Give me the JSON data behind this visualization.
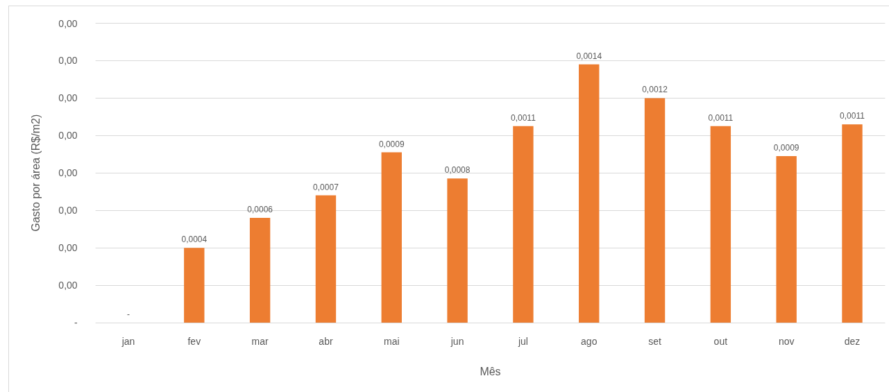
{
  "chart_data": {
    "type": "bar",
    "xlabel": "Mês",
    "ylabel": "Gasto por área (R$/m2)",
    "categories": [
      "jan",
      "fev",
      "mar",
      "abr",
      "mai",
      "jun",
      "jul",
      "ago",
      "set",
      "out",
      "nov",
      "dez"
    ],
    "values": [
      0,
      0.0004,
      0.00056,
      0.00068,
      0.00091,
      0.00077,
      0.00105,
      0.00138,
      0.0012,
      0.00105,
      0.00089,
      0.00106
    ],
    "value_labels": [
      "-",
      "0,0004",
      "0,0006",
      "0,0007",
      "0,0009",
      "0,0008",
      "0,0011",
      "0,0014",
      "0,0012",
      "0,0011",
      "0,0009",
      "0,0011"
    ],
    "color": "#ed7d31",
    "ylim": [
      0,
      0.0016
    ],
    "yticks": [
      {
        "value": 0,
        "label": "-"
      },
      {
        "value": 0.0002,
        "label": "0,00"
      },
      {
        "value": 0.0004,
        "label": "0,00"
      },
      {
        "value": 0.0006,
        "label": "0,00"
      },
      {
        "value": 0.0008,
        "label": "0,00"
      },
      {
        "value": 0.001,
        "label": "0,00"
      },
      {
        "value": 0.0012,
        "label": "0,00"
      },
      {
        "value": 0.0014,
        "label": "0,00"
      },
      {
        "value": 0.0016,
        "label": "0,00"
      }
    ],
    "grid": "y"
  }
}
